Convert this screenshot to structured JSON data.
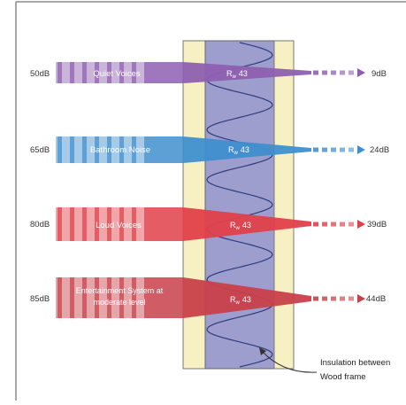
{
  "rows": [
    {
      "input": "50dB",
      "source": "Quiet Voices",
      "rating_symbol": "R",
      "rating_subscript": "w",
      "rating_value": "43",
      "output": "9dB",
      "color": "#8e5fb0"
    },
    {
      "input": "65dB",
      "source": "Bathroom Noise",
      "rating_symbol": "R",
      "rating_subscript": "w",
      "rating_value": "43",
      "output": "24dB",
      "color": "#3f8fcf"
    },
    {
      "input": "80dB",
      "source": "Loud Voices",
      "rating_symbol": "R",
      "rating_subscript": "w",
      "rating_value": "43",
      "output": "39dB",
      "color": "#e0404a"
    },
    {
      "input": "85dB",
      "source_lines": [
        "Entertainment System at",
        "moderate level"
      ],
      "rating_symbol": "R",
      "rating_subscript": "w",
      "rating_value": "43",
      "output": "44dB",
      "color": "#c8404a"
    }
  ],
  "wall": {
    "stud_color": "#f7f0c2",
    "insulation_color": "#8c8cc6",
    "coil_color": "#2f3d7a"
  },
  "annotation": {
    "lines": [
      "Insulation between",
      "Wood frame"
    ]
  }
}
